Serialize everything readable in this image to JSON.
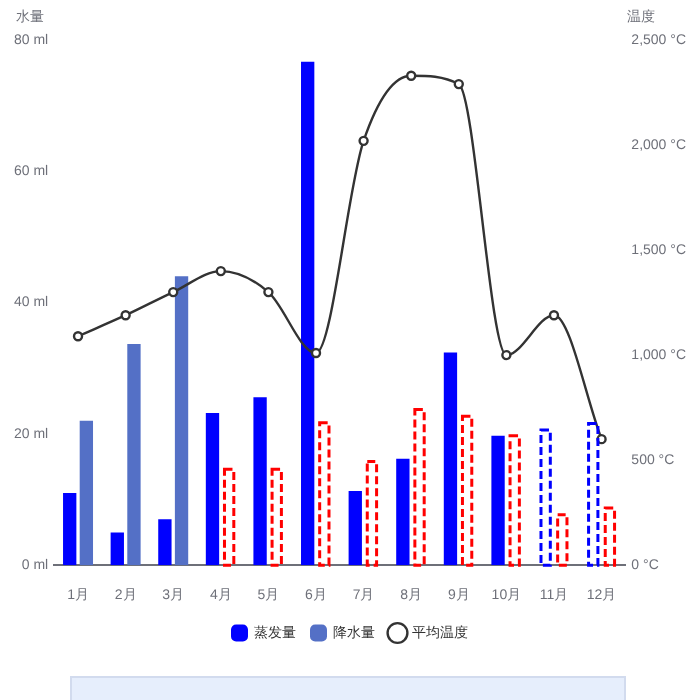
{
  "chart_data": {
    "type": "bar",
    "categories": [
      "1月",
      "2月",
      "3月",
      "4月",
      "5月",
      "6月",
      "7月",
      "8月",
      "9月",
      "10月",
      "11月",
      "12月"
    ],
    "ylabel": "水量",
    "y2label": "温度",
    "ylim": [
      0,
      80
    ],
    "yticks": [
      {
        "value": 0,
        "label": "0 ml"
      },
      {
        "value": 20,
        "label": "20 ml"
      },
      {
        "value": 40,
        "label": "40 ml"
      },
      {
        "value": 60,
        "label": "60 ml"
      },
      {
        "value": 80,
        "label": "80 ml"
      }
    ],
    "y2lim": [
      0,
      2500
    ],
    "y2ticks": [
      {
        "value": 0,
        "label": "0 °C"
      },
      {
        "value": 500,
        "label": "500 °C"
      },
      {
        "value": 1000,
        "label": "1,000 °C"
      },
      {
        "value": 1500,
        "label": "1,500 °C"
      },
      {
        "value": 2000,
        "label": "2,000 °C"
      },
      {
        "value": 2500,
        "label": "2,500 °C"
      }
    ],
    "series": [
      {
        "name": "蒸发量",
        "color": "#0000ff",
        "colors": [
          "#0000ff",
          "#0000ff",
          "#0000ff",
          "#0000ff",
          "#0000ff",
          "#0000ff",
          "#0000ff",
          "#0000ff",
          "#0000ff",
          "#0000ff",
          "#0000fe",
          "#0000fe"
        ],
        "values": [
          11,
          5,
          7,
          23.2,
          25.6,
          76.7,
          11.3,
          16.2,
          32.4,
          19.7,
          20.6,
          21.6
        ]
      },
      {
        "name": "降水量",
        "color": "#5470c6",
        "colors": [
          "#5470c6",
          "#5470c6",
          "#5470c6",
          "#ff0000",
          "#ff0000",
          "#ff0000",
          "#ff0000",
          "#ff0000",
          "#ff0000",
          "#ff0000",
          "#ff0000",
          "#ff0000"
        ],
        "values": [
          22,
          33.7,
          44,
          14.6,
          14.6,
          21.7,
          15.8,
          23.7,
          22.7,
          19.7,
          7.7,
          8.7
        ]
      },
      {
        "name": "平均温度",
        "type": "line",
        "axis": "y2",
        "color": "#333333",
        "marker": "circle",
        "values": [
          1090,
          1190,
          1300,
          1400,
          1300,
          1010,
          2020,
          2330,
          2290,
          1000,
          1190,
          600
        ]
      }
    ],
    "grid": false,
    "legend": "bottom"
  }
}
